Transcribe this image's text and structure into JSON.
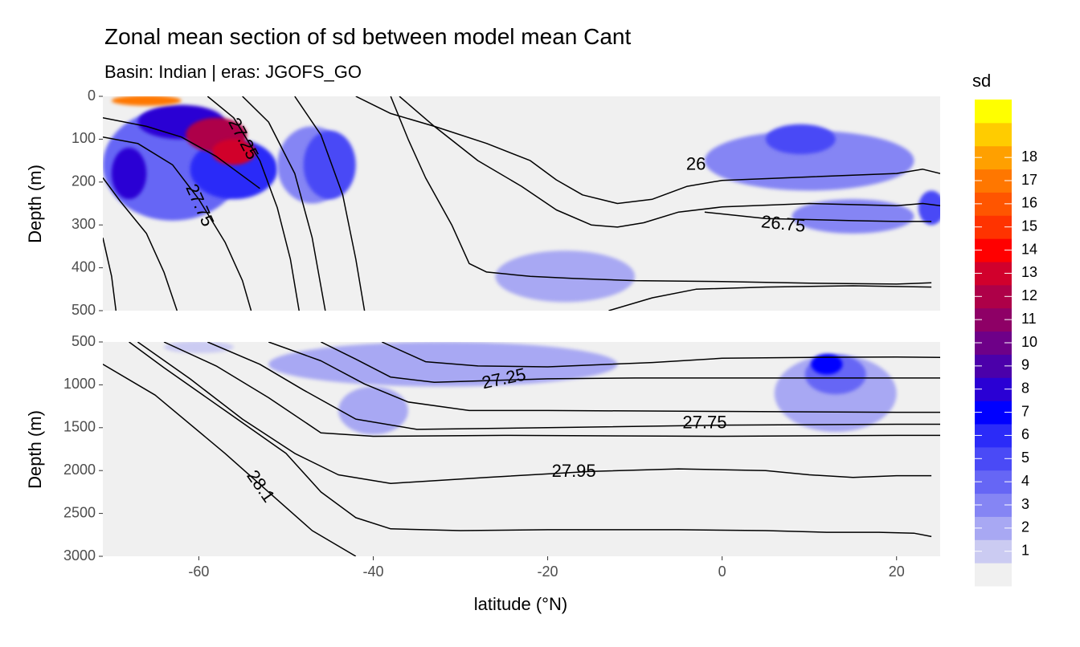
{
  "chart_data": {
    "type": "heatmap",
    "title": "Zonal mean section of sd between model mean Cant",
    "subtitle": "Basin: Indian | eras: JGOFS_GO",
    "xlabel": "latitude (°N)",
    "ylabel": "Depth (m)",
    "xlim": [
      -71,
      25
    ],
    "x_ticks": [
      -60,
      -40,
      -20,
      0,
      20
    ],
    "panels": [
      {
        "name": "upper",
        "ylim": [
          0,
          500
        ],
        "y_ticks": [
          0,
          100,
          200,
          300,
          400,
          500
        ],
        "contour_labels": [
          {
            "text": "27.25",
            "lat": -55,
            "depth": 100
          },
          {
            "text": "27.75",
            "lat": -60,
            "depth": 255
          },
          {
            "text": "26",
            "lat": -3,
            "depth": 160
          },
          {
            "text": "26.75",
            "lat": 7,
            "depth": 300
          }
        ],
        "isopycnals": [
          [
            [
              -71,
              50
            ],
            [
              -66,
              70
            ],
            [
              -62,
              95
            ],
            [
              -58,
              140
            ],
            [
              -55,
              185
            ],
            [
              -53,
              215
            ]
          ],
          [
            [
              -71,
              95
            ],
            [
              -67,
              110
            ],
            [
              -63,
              160
            ],
            [
              -60,
              240
            ],
            [
              -57,
              340
            ],
            [
              -55,
              430
            ],
            [
              -54,
              500
            ]
          ],
          [
            [
              -71,
              190
            ],
            [
              -69,
              245
            ],
            [
              -66,
              320
            ],
            [
              -64,
              410
            ],
            [
              -62.5,
              500
            ]
          ],
          [
            [
              -71,
              330
            ],
            [
              -70,
              420
            ],
            [
              -69.5,
              500
            ]
          ],
          [
            [
              -59,
              0
            ],
            [
              -56,
              50
            ],
            [
              -53,
              150
            ],
            [
              -51,
              260
            ],
            [
              -49.5,
              380
            ],
            [
              -48.5,
              500
            ]
          ],
          [
            [
              -55,
              0
            ],
            [
              -52,
              60
            ],
            [
              -49,
              180
            ],
            [
              -47,
              330
            ],
            [
              -45.5,
              500
            ]
          ],
          [
            [
              -49,
              0
            ],
            [
              -46,
              90
            ],
            [
              -43.5,
              230
            ],
            [
              -42,
              380
            ],
            [
              -41,
              500
            ]
          ],
          [
            [
              -42,
              0
            ],
            [
              -38,
              40
            ],
            [
              -33,
              70
            ],
            [
              -27,
              110
            ],
            [
              -22,
              150
            ],
            [
              -19,
              195
            ],
            [
              -16,
              230
            ],
            [
              -12,
              250
            ],
            [
              -8,
              240
            ],
            [
              -4,
              210
            ],
            [
              0,
              196
            ],
            [
              10,
              188
            ],
            [
              20,
              180
            ],
            [
              23,
              170
            ],
            [
              25,
              180
            ]
          ],
          [
            [
              -37,
              0
            ],
            [
              -33,
              70
            ],
            [
              -28,
              150
            ],
            [
              -23,
              210
            ],
            [
              -19,
              265
            ],
            [
              -15,
              300
            ],
            [
              -12,
              305
            ],
            [
              -9,
              295
            ],
            [
              -5,
              270
            ],
            [
              0,
              258
            ],
            [
              10,
              250
            ],
            [
              20,
              255
            ],
            [
              23,
              250
            ],
            [
              25,
              255
            ]
          ],
          [
            [
              -38,
              0
            ],
            [
              -36,
              100
            ],
            [
              -34,
              190
            ],
            [
              -31,
              300
            ],
            [
              -29,
              390
            ],
            [
              -27,
              410
            ],
            [
              -22,
              420
            ],
            [
              -17,
              425
            ],
            [
              -10,
              430
            ],
            [
              0,
              432
            ],
            [
              10,
              436
            ],
            [
              20,
              438
            ],
            [
              24,
              435
            ]
          ],
          [
            [
              -13,
              500
            ],
            [
              -8,
              470
            ],
            [
              -3,
              450
            ],
            [
              5,
              445
            ],
            [
              15,
              442
            ],
            [
              24,
              445
            ]
          ],
          [
            [
              -2,
              270
            ],
            [
              5,
              285
            ],
            [
              15,
              290
            ],
            [
              20,
              292
            ],
            [
              24,
              292
            ]
          ]
        ],
        "blobs": [
          {
            "lat": -63,
            "depth": 160,
            "rx": 8,
            "ry": 130,
            "level": 4
          },
          {
            "lat": -56,
            "depth": 170,
            "rx": 5,
            "ry": 70,
            "level": 6
          },
          {
            "lat": -62,
            "depth": 60,
            "rx": 5,
            "ry": 40,
            "level": 8
          },
          {
            "lat": -58,
            "depth": 90,
            "rx": 3.5,
            "ry": 40,
            "level": 12
          },
          {
            "lat": -56,
            "depth": 130,
            "rx": 2.5,
            "ry": 30,
            "level": 13
          },
          {
            "lat": -66,
            "depth": 10,
            "rx": 4,
            "ry": 12,
            "level": 17
          },
          {
            "lat": -47,
            "depth": 160,
            "rx": 4,
            "ry": 90,
            "level": 3
          },
          {
            "lat": -45,
            "depth": 160,
            "rx": 3,
            "ry": 80,
            "level": 5
          },
          {
            "lat": -68,
            "depth": 180,
            "rx": 2,
            "ry": 60,
            "level": 8
          },
          {
            "lat": 10,
            "depth": 150,
            "rx": 12,
            "ry": 70,
            "level": 3
          },
          {
            "lat": 9,
            "depth": 100,
            "rx": 4,
            "ry": 35,
            "level": 5
          },
          {
            "lat": 15,
            "depth": 280,
            "rx": 7,
            "ry": 40,
            "level": 3
          },
          {
            "lat": -18,
            "depth": 420,
            "rx": 8,
            "ry": 60,
            "level": 2
          },
          {
            "lat": 24,
            "depth": 260,
            "rx": 1.5,
            "ry": 40,
            "level": 5
          }
        ]
      },
      {
        "name": "lower",
        "ylim": [
          500,
          3000
        ],
        "y_ticks": [
          500,
          1000,
          1500,
          2000,
          2500,
          3000
        ],
        "contour_labels": [
          {
            "text": "27.25",
            "lat": -25,
            "depth": 940
          },
          {
            "text": "27.75",
            "lat": -2,
            "depth": 1450
          },
          {
            "text": "27.95",
            "lat": -17,
            "depth": 2020
          },
          {
            "text": "28.1",
            "lat": -53,
            "depth": 2190
          }
        ],
        "isopycnals": [
          [
            [
              -39,
              500
            ],
            [
              -34,
              730
            ],
            [
              -28,
              780
            ],
            [
              -20,
              790
            ],
            [
              -8,
              740
            ],
            [
              0,
              690
            ],
            [
              10,
              680
            ],
            [
              20,
              675
            ],
            [
              25,
              680
            ]
          ],
          [
            [
              -46,
              500
            ],
            [
              -42,
              700
            ],
            [
              -38,
              910
            ],
            [
              -33,
              970
            ],
            [
              -20,
              930
            ],
            [
              -10,
              920
            ],
            [
              0,
              920
            ],
            [
              20,
              920
            ],
            [
              25,
              920
            ]
          ],
          [
            [
              -52,
              500
            ],
            [
              -46,
              720
            ],
            [
              -41,
              990
            ],
            [
              -36,
              1200
            ],
            [
              -29,
              1300
            ],
            [
              -20,
              1300
            ],
            [
              0,
              1310
            ],
            [
              20,
              1320
            ],
            [
              25,
              1320
            ]
          ],
          [
            [
              -59,
              500
            ],
            [
              -53,
              760
            ],
            [
              -48,
              1060
            ],
            [
              -42,
              1400
            ],
            [
              -35,
              1520
            ],
            [
              -20,
              1500
            ],
            [
              0,
              1470
            ],
            [
              20,
              1460
            ],
            [
              25,
              1460
            ]
          ],
          [
            [
              -64,
              500
            ],
            [
              -58,
              780
            ],
            [
              -52,
              1150
            ],
            [
              -46,
              1560
            ],
            [
              -40,
              1600
            ],
            [
              -25,
              1590
            ],
            [
              0,
              1600
            ],
            [
              20,
              1590
            ],
            [
              25,
              1590
            ]
          ],
          [
            [
              -67,
              500
            ],
            [
              -61,
              930
            ],
            [
              -55,
              1400
            ],
            [
              -49,
              1800
            ],
            [
              -44,
              2050
            ],
            [
              -38,
              2150
            ],
            [
              -27,
              2080
            ],
            [
              -15,
              2010
            ],
            [
              -5,
              1980
            ],
            [
              5,
              2000
            ],
            [
              10,
              2050
            ],
            [
              15,
              2080
            ],
            [
              20,
              2060
            ],
            [
              24,
              2060
            ]
          ],
          [
            [
              -71,
              760
            ],
            [
              -65,
              1120
            ],
            [
              -57,
              1800
            ],
            [
              -52,
              2250
            ],
            [
              -47,
              2700
            ],
            [
              -42,
              3000
            ]
          ],
          [
            [
              -68,
              500
            ],
            [
              -64,
              800
            ],
            [
              -57,
              1300
            ],
            [
              -50,
              1800
            ],
            [
              -46,
              2250
            ],
            [
              -42,
              2550
            ],
            [
              -38,
              2680
            ],
            [
              -30,
              2700
            ],
            [
              -20,
              2690
            ],
            [
              -5,
              2690
            ],
            [
              5,
              2700
            ],
            [
              12,
              2720
            ],
            [
              18,
              2720
            ],
            [
              22,
              2730
            ],
            [
              24,
              2770
            ]
          ]
        ],
        "blobs": [
          {
            "lat": -32,
            "depth": 760,
            "rx": 20,
            "ry": 260,
            "level": 2
          },
          {
            "lat": -40,
            "depth": 1300,
            "rx": 4,
            "ry": 280,
            "level": 2
          },
          {
            "lat": 13,
            "depth": 1100,
            "rx": 7,
            "ry": 450,
            "level": 2
          },
          {
            "lat": 13,
            "depth": 880,
            "rx": 3.5,
            "ry": 230,
            "level": 4
          },
          {
            "lat": 12,
            "depth": 760,
            "rx": 1.8,
            "ry": 120,
            "level": 7
          },
          {
            "lat": -60,
            "depth": 560,
            "rx": 4,
            "ry": 70,
            "level": 1
          }
        ]
      }
    ],
    "legend": {
      "title": "sd",
      "placement": "right",
      "labels": [
        1,
        2,
        3,
        4,
        5,
        6,
        7,
        8,
        9,
        10,
        11,
        12,
        13,
        14,
        15,
        16,
        17,
        18
      ],
      "bins": [
        "#f0f0f0",
        "#cbcbf2",
        "#a8a8f3",
        "#8585f4",
        "#6666f5",
        "#4a4af6",
        "#2b2bf8",
        "#0000ff",
        "#2a00d4",
        "#4b00aa",
        "#6e0088",
        "#8e0066",
        "#ae0048",
        "#d1002c",
        "#ff0000",
        "#ff3300",
        "#ff5500",
        "#ff7700",
        "#ffa000",
        "#ffcc00",
        "#ffff00"
      ]
    },
    "panel_background": "#f0f0f0",
    "contour_color": "#000000"
  }
}
